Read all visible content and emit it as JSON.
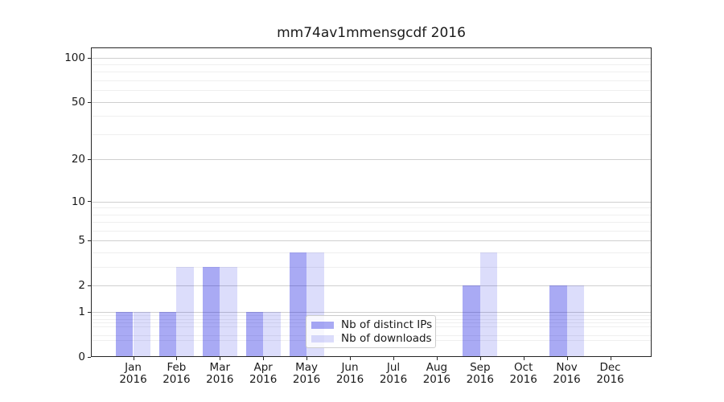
{
  "figure": {
    "title": "mm74av1mmensgcdf 2016",
    "background": "#ffffff"
  },
  "legend": {
    "items": [
      {
        "label": "Nb of distinct IPs",
        "color": "#a9aaf4",
        "fill": "rgba(8,12,224,0.35)"
      },
      {
        "label": "Nb of downloads",
        "color": "#dbdcf9",
        "fill": "rgba(8,12,224,0.14)"
      }
    ]
  },
  "axes": {
    "y_tick_labels": [
      "0",
      "1",
      "2",
      "5",
      "10",
      "20",
      "50",
      "100"
    ],
    "x_months": [
      "Jan",
      "Feb",
      "Mar",
      "Apr",
      "May",
      "Jun",
      "Jul",
      "Aug",
      "Sep",
      "Oct",
      "Nov",
      "Dec"
    ],
    "x_year": "2016"
  },
  "colors": {
    "grid_major": "#cfcfcf",
    "grid_minor": "#efefef",
    "spine": "#262626",
    "text": "#1a1a1a"
  },
  "chart_data": {
    "type": "bar",
    "title": "mm74av1mmensgcdf 2016",
    "categories": [
      "Jan 2016",
      "Feb 2016",
      "Mar 2016",
      "Apr 2016",
      "May 2016",
      "Jun 2016",
      "Jul 2016",
      "Aug 2016",
      "Sep 2016",
      "Oct 2016",
      "Nov 2016",
      "Dec 2016"
    ],
    "series": [
      {
        "name": "Nb of distinct IPs",
        "color": "#a9aaf4",
        "fill": "rgba(8,12,224,0.35)",
        "values": [
          1,
          1,
          3,
          1,
          4,
          0,
          0,
          0,
          2,
          0,
          2,
          0
        ]
      },
      {
        "name": "Nb of downloads",
        "color": "#dbdcf9",
        "fill": "rgba(8,12,224,0.14)",
        "values": [
          1,
          3,
          3,
          1,
          4,
          0,
          0,
          0,
          4,
          0,
          2,
          0
        ]
      }
    ],
    "xlabel": "",
    "ylabel": "",
    "y_scale": "log1p",
    "ylim": [
      0,
      117
    ],
    "y_major_ticks": [
      0,
      1,
      2,
      5,
      10,
      20,
      50,
      100
    ],
    "y_minor_ticks": [
      0.3,
      0.4,
      0.6,
      0.7,
      0.8,
      0.9,
      3,
      4,
      6,
      7,
      8,
      9,
      30,
      40,
      60,
      70,
      80,
      90
    ],
    "grid": true,
    "legend_position": "lower center"
  }
}
